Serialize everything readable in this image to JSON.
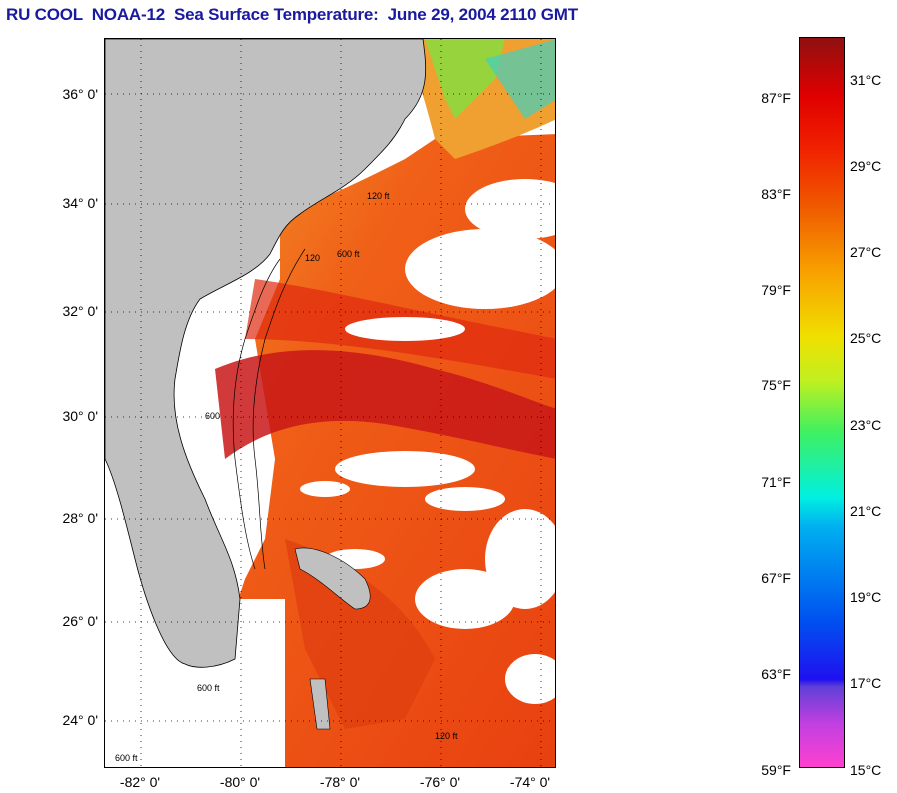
{
  "title": "RU COOL  NOAA-12  Sea Surface Temperature:  June 29, 2004 2110 GMT",
  "map": {
    "lat_labels": [
      "36° 0'",
      "34° 0'",
      "32° 0'",
      "30° 0'",
      "28° 0'",
      "26° 0'",
      "24° 0'"
    ],
    "lon_labels": [
      "-82° 0'",
      "-80° 0'",
      "-78° 0'",
      "-76° 0'",
      "-74° 0'"
    ],
    "contour_labels": [
      "120 ft",
      "600 ft",
      "120",
      "600",
      "600 ft",
      "120 ft",
      "600 ft"
    ]
  },
  "colorbar": {
    "fahrenheit_labels": [
      "87°F",
      "83°F",
      "79°F",
      "75°F",
      "71°F",
      "67°F",
      "63°F",
      "59°F"
    ],
    "celsius_labels": [
      "31°C",
      "29°C",
      "27°C",
      "25°C",
      "23°C",
      "21°C",
      "19°C",
      "17°C",
      "15°C"
    ]
  },
  "colors": {
    "title": "#1a1aa0",
    "land": "#c0c0c0",
    "cloud": "#ffffff",
    "warm_water": "#f05010",
    "hot_water": "#c81010"
  }
}
